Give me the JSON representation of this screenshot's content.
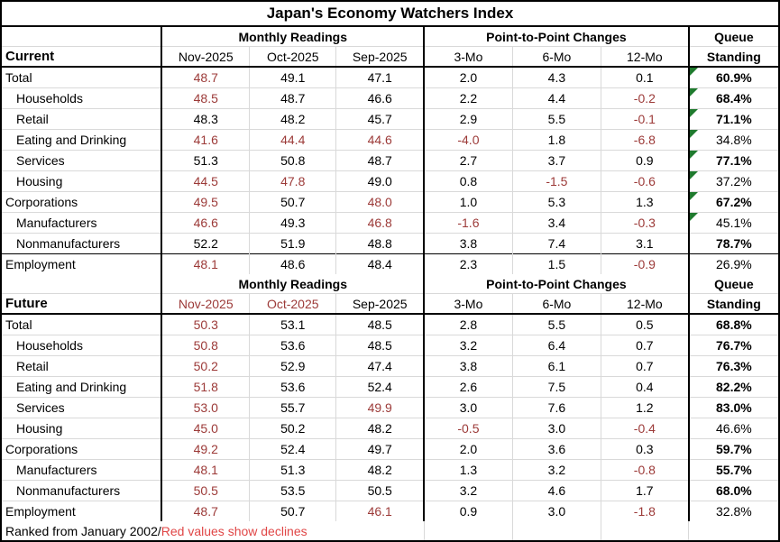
{
  "title": "Japan's Economy Watchers Index",
  "footer": {
    "ranked_text": "Ranked from January 2002/",
    "legend_text": "Red values show declines"
  },
  "colors": {
    "decline_red": "#9C3A38",
    "legend_red": "#E04646",
    "flag_green": "#1F7A2E",
    "grid_gray": "#D9D9D9",
    "border_black": "#000000"
  },
  "chart_data": {
    "type": "table",
    "sections": [
      {
        "label": "Current",
        "groups": {
          "monthly": "Monthly Readings",
          "changes": "Point-to-Point Changes",
          "queue_line1": "Queue",
          "queue_line2": "Standing"
        },
        "col_headers": [
          "Nov-2025",
          "Oct-2025",
          "Sep-2025",
          "3-Mo",
          "6-Mo",
          "12-Mo"
        ],
        "header_red": [
          false,
          false,
          false,
          false,
          false,
          false
        ],
        "rows": [
          {
            "label": "Total",
            "indent": false,
            "top_dark": false,
            "values": [
              "48.7",
              "49.1",
              "47.1",
              "2.0",
              "4.3",
              "0.1"
            ],
            "red": [
              true,
              false,
              false,
              false,
              false,
              false
            ],
            "queue": "60.9%",
            "queue_bold": true,
            "flag": true
          },
          {
            "label": "Households",
            "indent": true,
            "top_dark": false,
            "values": [
              "48.5",
              "48.7",
              "46.6",
              "2.2",
              "4.4",
              "-0.2"
            ],
            "red": [
              true,
              false,
              false,
              false,
              false,
              true
            ],
            "queue": "68.4%",
            "queue_bold": true,
            "flag": true
          },
          {
            "label": "Retail",
            "indent": true,
            "top_dark": false,
            "values": [
              "48.3",
              "48.2",
              "45.7",
              "2.9",
              "5.5",
              "-0.1"
            ],
            "red": [
              false,
              false,
              false,
              false,
              false,
              true
            ],
            "queue": "71.1%",
            "queue_bold": true,
            "flag": true
          },
          {
            "label": "Eating and Drinking",
            "indent": true,
            "top_dark": false,
            "values": [
              "41.6",
              "44.4",
              "44.6",
              "-4.0",
              "1.8",
              "-6.8"
            ],
            "red": [
              true,
              true,
              true,
              true,
              false,
              true
            ],
            "queue": "34.8%",
            "queue_bold": false,
            "flag": true
          },
          {
            "label": "Services",
            "indent": true,
            "top_dark": false,
            "values": [
              "51.3",
              "50.8",
              "48.7",
              "2.7",
              "3.7",
              "0.9"
            ],
            "red": [
              false,
              false,
              false,
              false,
              false,
              false
            ],
            "queue": "77.1%",
            "queue_bold": true,
            "flag": true
          },
          {
            "label": "Housing",
            "indent": true,
            "top_dark": false,
            "values": [
              "44.5",
              "47.8",
              "49.0",
              "0.8",
              "-1.5",
              "-0.6"
            ],
            "red": [
              true,
              true,
              false,
              false,
              true,
              true
            ],
            "queue": "37.2%",
            "queue_bold": false,
            "flag": true
          },
          {
            "label": "Corporations",
            "indent": false,
            "top_dark": false,
            "values": [
              "49.5",
              "50.7",
              "48.0",
              "1.0",
              "5.3",
              "1.3"
            ],
            "red": [
              true,
              false,
              true,
              false,
              false,
              false
            ],
            "queue": "67.2%",
            "queue_bold": true,
            "flag": true
          },
          {
            "label": "Manufacturers",
            "indent": true,
            "top_dark": false,
            "values": [
              "46.6",
              "49.3",
              "46.8",
              "-1.6",
              "3.4",
              "-0.3"
            ],
            "red": [
              true,
              false,
              true,
              true,
              false,
              true
            ],
            "queue": "45.1%",
            "queue_bold": false,
            "flag": true
          },
          {
            "label": "Nonmanufacturers",
            "indent": true,
            "top_dark": false,
            "values": [
              "52.2",
              "51.9",
              "48.8",
              "3.8",
              "7.4",
              "3.1"
            ],
            "red": [
              false,
              false,
              false,
              false,
              false,
              false
            ],
            "queue": "78.7%",
            "queue_bold": true,
            "flag": false
          },
          {
            "label": "Employment",
            "indent": false,
            "top_dark": true,
            "values": [
              "48.1",
              "48.6",
              "48.4",
              "2.3",
              "1.5",
              "-0.9"
            ],
            "red": [
              true,
              false,
              false,
              false,
              false,
              true
            ],
            "queue": "26.9%",
            "queue_bold": false,
            "flag": false
          }
        ]
      },
      {
        "label": "Future",
        "groups": {
          "monthly": "Monthly Readings",
          "changes": "Point-to-Point Changes",
          "queue_line1": "Queue",
          "queue_line2": "Standing"
        },
        "col_headers": [
          "Nov-2025",
          "Oct-2025",
          "Sep-2025",
          "3-Mo",
          "6-Mo",
          "12-Mo"
        ],
        "header_red": [
          true,
          true,
          false,
          false,
          false,
          false
        ],
        "rows": [
          {
            "label": "Total",
            "indent": false,
            "top_dark": false,
            "values": [
              "50.3",
              "53.1",
              "48.5",
              "2.8",
              "5.5",
              "0.5"
            ],
            "red": [
              true,
              false,
              false,
              false,
              false,
              false
            ],
            "queue": "68.8%",
            "queue_bold": true,
            "flag": false
          },
          {
            "label": "Households",
            "indent": true,
            "top_dark": false,
            "values": [
              "50.8",
              "53.6",
              "48.5",
              "3.2",
              "6.4",
              "0.7"
            ],
            "red": [
              true,
              false,
              false,
              false,
              false,
              false
            ],
            "queue": "76.7%",
            "queue_bold": true,
            "flag": false
          },
          {
            "label": "Retail",
            "indent": true,
            "top_dark": false,
            "values": [
              "50.2",
              "52.9",
              "47.4",
              "3.8",
              "6.1",
              "0.7"
            ],
            "red": [
              true,
              false,
              false,
              false,
              false,
              false
            ],
            "queue": "76.3%",
            "queue_bold": true,
            "flag": false
          },
          {
            "label": "Eating and Drinking",
            "indent": true,
            "top_dark": false,
            "values": [
              "51.8",
              "53.6",
              "52.4",
              "2.6",
              "7.5",
              "0.4"
            ],
            "red": [
              true,
              false,
              false,
              false,
              false,
              false
            ],
            "queue": "82.2%",
            "queue_bold": true,
            "flag": false
          },
          {
            "label": "Services",
            "indent": true,
            "top_dark": false,
            "values": [
              "53.0",
              "55.7",
              "49.9",
              "3.0",
              "7.6",
              "1.2"
            ],
            "red": [
              true,
              false,
              true,
              false,
              false,
              false
            ],
            "queue": "83.0%",
            "queue_bold": true,
            "flag": false
          },
          {
            "label": "Housing",
            "indent": true,
            "top_dark": false,
            "values": [
              "45.0",
              "50.2",
              "48.2",
              "-0.5",
              "3.0",
              "-0.4"
            ],
            "red": [
              true,
              false,
              false,
              true,
              false,
              true
            ],
            "queue": "46.6%",
            "queue_bold": false,
            "flag": false
          },
          {
            "label": "Corporations",
            "indent": false,
            "top_dark": false,
            "values": [
              "49.2",
              "52.4",
              "49.7",
              "2.0",
              "3.6",
              "0.3"
            ],
            "red": [
              true,
              false,
              false,
              false,
              false,
              false
            ],
            "queue": "59.7%",
            "queue_bold": true,
            "flag": false
          },
          {
            "label": "Manufacturers",
            "indent": true,
            "top_dark": false,
            "values": [
              "48.1",
              "51.3",
              "48.2",
              "1.3",
              "3.2",
              "-0.8"
            ],
            "red": [
              true,
              false,
              false,
              false,
              false,
              true
            ],
            "queue": "55.7%",
            "queue_bold": true,
            "flag": false
          },
          {
            "label": "Nonmanufacturers",
            "indent": true,
            "top_dark": false,
            "values": [
              "50.5",
              "53.5",
              "50.5",
              "3.2",
              "4.6",
              "1.7"
            ],
            "red": [
              true,
              false,
              false,
              false,
              false,
              false
            ],
            "queue": "68.0%",
            "queue_bold": true,
            "flag": false
          },
          {
            "label": "Employment",
            "indent": false,
            "top_dark": false,
            "values": [
              "48.7",
              "50.7",
              "46.1",
              "0.9",
              "3.0",
              "-1.8"
            ],
            "red": [
              true,
              false,
              true,
              false,
              false,
              true
            ],
            "queue": "32.8%",
            "queue_bold": false,
            "flag": false
          }
        ]
      }
    ]
  }
}
